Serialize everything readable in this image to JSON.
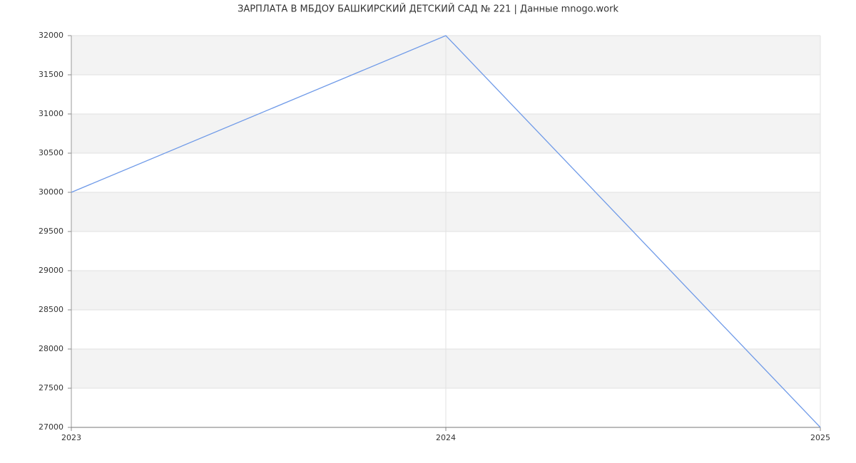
{
  "chart_data": {
    "type": "line",
    "title": "ЗАРПЛАТА В МБДОУ БАШКИРСКИЙ ДЕТСКИЙ САД № 221 | Данные mnogo.work",
    "x": [
      2023,
      2024,
      2025
    ],
    "series": [
      {
        "color": "#6f9ae8",
        "values": [
          30000,
          32000,
          27000
        ]
      }
    ],
    "xlim": [
      2023,
      2025
    ],
    "xticks": [
      2023,
      2024,
      2025
    ],
    "ylim": [
      27000,
      32000
    ],
    "yticks": [
      27000,
      27500,
      28000,
      28500,
      29000,
      29500,
      30000,
      30500,
      31000,
      31500,
      32000
    ],
    "grid": true
  }
}
